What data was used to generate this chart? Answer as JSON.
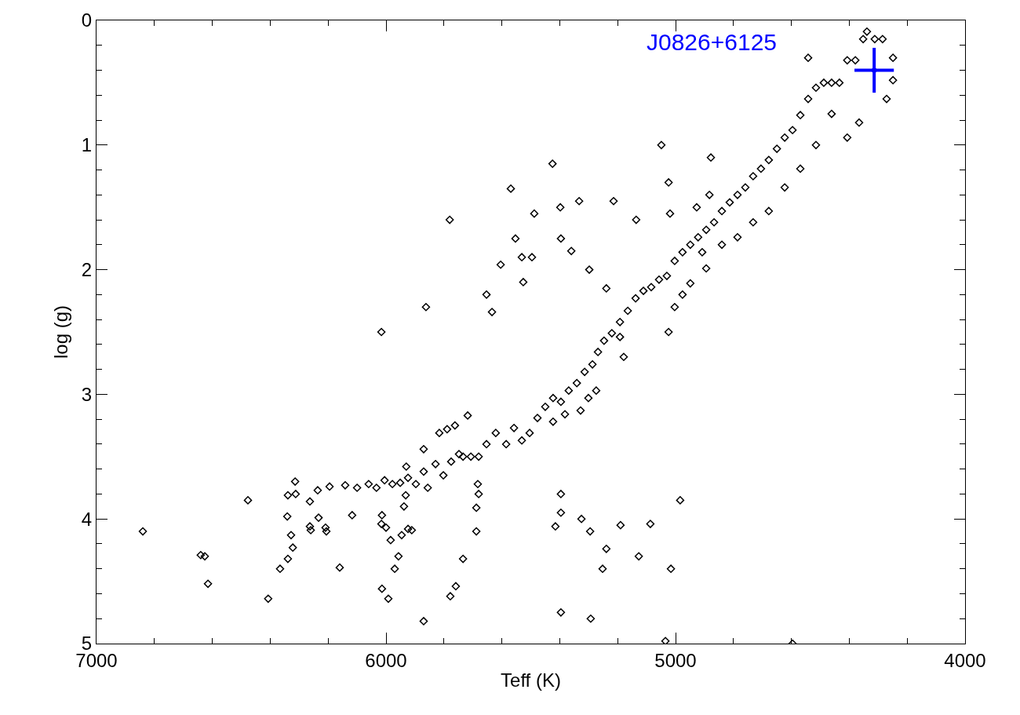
{
  "chart_data": {
    "type": "scatter",
    "xlabel": "Teff (K)",
    "ylabel": "log (g)",
    "xlim": [
      7000,
      4000
    ],
    "ylim": [
      5.0,
      0
    ],
    "xticks": [
      7000,
      {
        "value": 6800,
        "label": null
      },
      {
        "value": 6600,
        "label": null
      },
      {
        "value": 6400,
        "label": null
      },
      {
        "value": 6200,
        "label": null
      },
      6000,
      {
        "value": 5800,
        "label": null
      },
      {
        "value": 5600,
        "label": null
      },
      {
        "value": 5400,
        "label": null
      },
      {
        "value": 5200,
        "label": null
      },
      5000,
      {
        "value": 4800,
        "label": null
      },
      {
        "value": 4600,
        "label": null
      },
      {
        "value": 4400,
        "label": null
      },
      {
        "value": 4200,
        "label": null
      },
      4000
    ],
    "yticks": [
      0,
      {
        "value": 0.2,
        "label": null
      },
      {
        "value": 0.4,
        "label": null
      },
      {
        "value": 0.6,
        "label": null
      },
      {
        "value": 0.8,
        "label": null
      },
      1,
      {
        "value": 1.2,
        "label": null
      },
      {
        "value": 1.4,
        "label": null
      },
      {
        "value": 1.6,
        "label": null
      },
      {
        "value": 1.8,
        "label": null
      },
      2,
      {
        "value": 2.2,
        "label": null
      },
      {
        "value": 2.4,
        "label": null
      },
      {
        "value": 2.6,
        "label": null
      },
      {
        "value": 2.8,
        "label": null
      },
      3,
      {
        "value": 3.2,
        "label": null
      },
      {
        "value": 3.4,
        "label": null
      },
      {
        "value": 3.6,
        "label": null
      },
      {
        "value": 3.8,
        "label": null
      },
      4,
      {
        "value": 4.2,
        "label": null
      },
      {
        "value": 4.4,
        "label": null
      },
      {
        "value": 4.6,
        "label": null
      },
      {
        "value": 4.8,
        "label": null
      },
      5
    ],
    "series": [
      {
        "color": "#000000",
        "marker": "diamond",
        "x": [
          6840,
          6640,
          6626,
          6615,
          6477,
          6407,
          6366,
          6339,
          6328,
          6322,
          6341,
          6314,
          6312,
          6339,
          6263,
          6263,
          6260,
          6233,
          6209,
          6206,
          6160,
          6117,
          6016,
          6014,
          6016,
          6000,
          6014,
          5992,
          5984,
          5970,
          5957,
          5946,
          5938,
          5932,
          5924,
          5911,
          5870,
          5862,
          5780,
          5734,
          5778,
          5759,
          5688,
          5688,
          5683,
          5680,
          5653,
          5634,
          5604,
          5569,
          5553,
          5531,
          5526,
          5496,
          5488,
          5425,
          5398,
          5396,
          5360,
          5333,
          5298,
          5214,
          5136,
          5239,
          5396,
          5415,
          5396,
          5396,
          5325,
          5295,
          5239,
          5252,
          5293,
          5190,
          5127,
          5087,
          5016,
          4984,
          5035,
          4596,
          5049,
          4878,
          5024,
          5019,
          4927,
          4883,
          5024,
          6236,
          6195,
          6141,
          6100,
          6060,
          6033,
          6005,
          5978,
          5951,
          5924,
          5897,
          5930,
          5870,
          5856,
          5829,
          5802,
          5775,
          5748,
          5870,
          5816,
          5789,
          5762,
          5718,
          5734,
          5707,
          5680,
          5653,
          5621,
          5585,
          5558,
          5531,
          5504,
          5477,
          5450,
          5423,
          5396,
          5382,
          5369,
          5341,
          5314,
          5287,
          5268,
          5247,
          5220,
          5192,
          5192,
          5165,
          5138,
          5111,
          5084,
          5057,
          5030,
          5179,
          5274,
          5301,
          5328,
          5423,
          5003,
          4976,
          4949,
          4922,
          4908,
          4894,
          4867,
          4840,
          4813,
          4786,
          4759,
          4732,
          4705,
          4678,
          4650,
          4623,
          4596,
          4569,
          4542,
          4515,
          4488,
          4461,
          4434,
          4407,
          4379,
          4352,
          4339,
          4312,
          4285,
          4249,
          4271,
          4366,
          4407,
          4461,
          4515,
          4569,
          4623,
          4678,
          4732,
          4786,
          4840,
          4894,
          4949,
          4976,
          5003,
          4249,
          4542
        ],
        "values": [
          4.1,
          4.29,
          4.3,
          4.52,
          3.85,
          4.64,
          4.4,
          4.32,
          4.13,
          4.23,
          3.98,
          3.7,
          3.8,
          3.81,
          3.86,
          4.06,
          4.09,
          3.99,
          4.07,
          4.1,
          4.39,
          3.97,
          2.5,
          3.97,
          4.04,
          4.07,
          4.56,
          4.64,
          4.17,
          4.4,
          4.3,
          4.13,
          3.9,
          3.81,
          4.08,
          4.09,
          4.82,
          2.3,
          1.6,
          4.32,
          4.62,
          4.54,
          4.1,
          3.91,
          3.72,
          3.8,
          2.2,
          2.34,
          1.96,
          1.35,
          1.75,
          1.9,
          2.1,
          1.9,
          1.55,
          1.15,
          1.5,
          1.75,
          1.85,
          1.45,
          2.0,
          1.45,
          1.6,
          2.15,
          3.8,
          4.06,
          3.95,
          4.75,
          4.0,
          4.1,
          4.24,
          4.4,
          4.8,
          4.05,
          4.3,
          4.04,
          4.4,
          3.85,
          4.98,
          5.0,
          1.0,
          1.1,
          1.3,
          1.55,
          1.5,
          1.4,
          2.5,
          3.77,
          3.74,
          3.73,
          3.75,
          3.72,
          3.75,
          3.69,
          3.72,
          3.71,
          3.67,
          3.72,
          3.58,
          3.62,
          3.75,
          3.56,
          3.65,
          3.54,
          3.48,
          3.44,
          3.31,
          3.28,
          3.25,
          3.17,
          3.5,
          3.5,
          3.5,
          3.4,
          3.31,
          3.4,
          3.27,
          3.37,
          3.31,
          3.19,
          3.1,
          3.03,
          3.06,
          3.16,
          2.97,
          2.91,
          2.82,
          2.76,
          2.66,
          2.57,
          2.51,
          2.54,
          2.42,
          2.33,
          2.23,
          2.17,
          2.14,
          2.08,
          2.05,
          2.7,
          2.97,
          3.03,
          3.13,
          3.22,
          1.93,
          1.86,
          1.8,
          1.74,
          1.86,
          1.68,
          1.62,
          1.53,
          1.46,
          1.4,
          1.34,
          1.25,
          1.19,
          1.12,
          1.03,
          0.94,
          0.88,
          0.76,
          0.63,
          0.54,
          0.5,
          0.5,
          0.5,
          0.32,
          0.32,
          0.15,
          0.09,
          0.15,
          0.15,
          0.48,
          0.63,
          0.82,
          0.94,
          0.75,
          1.0,
          1.19,
          1.34,
          1.53,
          1.62,
          1.74,
          1.8,
          1.99,
          2.11,
          2.2,
          2.3,
          0.3,
          0.3
        ]
      },
      {
        "color": "#0000ff",
        "marker": "circle",
        "x": [
          4314
        ],
        "values": [
          0.4
        ],
        "errors": [
          0.18
        ],
        "xerrors": [
          68
        ]
      }
    ],
    "annotations": [
      "J0826+6125"
    ]
  }
}
